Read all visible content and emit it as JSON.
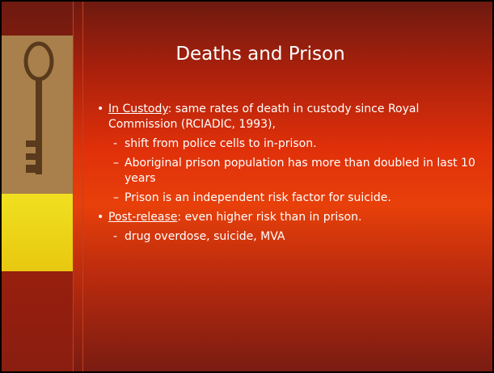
{
  "slide": {
    "title": "Deaths and Prison",
    "items": [
      {
        "level": 1,
        "marker": "•",
        "lead": "In Custody",
        "text": ": same rates of death in custody since Royal Commission (RCIADIC, 1993),"
      },
      {
        "level": 2,
        "marker": "-",
        "text": "shift from police cells to in-prison."
      },
      {
        "level": 2,
        "marker": "–",
        "text": "Aboriginal prison population has more than doubled in last 10 years"
      },
      {
        "level": 2,
        "marker": "–",
        "text": "Prison is an independent risk factor for suicide."
      },
      {
        "level": 1,
        "marker": "•",
        "lead": "Post-release",
        "text": ": even higher risk than in prison."
      },
      {
        "level": 2,
        "marker": "-",
        "text": "drug overdose, suicide, MVA"
      }
    ]
  }
}
